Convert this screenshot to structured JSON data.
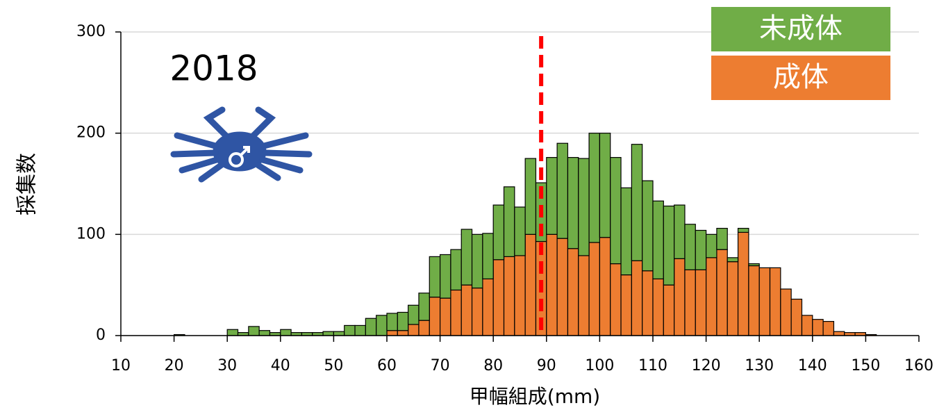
{
  "chart_data": {
    "type": "histogram",
    "stacked": true,
    "annotation": "2018",
    "xlabel": "甲幅組成(mm)",
    "ylabel": "採集数",
    "bins": [
      20,
      22,
      24,
      26,
      28,
      30,
      32,
      34,
      36,
      38,
      40,
      42,
      44,
      46,
      48,
      50,
      52,
      54,
      56,
      58,
      60,
      62,
      64,
      66,
      68,
      70,
      72,
      74,
      76,
      78,
      80,
      82,
      84,
      86,
      88,
      90,
      92,
      94,
      96,
      98,
      100,
      102,
      104,
      106,
      108,
      110,
      112,
      114,
      116,
      118,
      120,
      122,
      124,
      126,
      128,
      130,
      132,
      134,
      136,
      138,
      140,
      142,
      144,
      146,
      148,
      150,
      152
    ],
    "series": [
      {
        "name": "成体",
        "color": "#ed7d31",
        "values": [
          0,
          0,
          0,
          0,
          0,
          0,
          0,
          0,
          0,
          0,
          0,
          0,
          0,
          0,
          0,
          0,
          0,
          0,
          0,
          0,
          5,
          5,
          11,
          15,
          38,
          37,
          45,
          50,
          47,
          56,
          75,
          78,
          79,
          100,
          93,
          100,
          96,
          86,
          79,
          92,
          97,
          71,
          60,
          74,
          64,
          56,
          50,
          76,
          65,
          65,
          77,
          85,
          73,
          102,
          69,
          67,
          67,
          46,
          36,
          20,
          16,
          14,
          4,
          3,
          3,
          1
        ]
      },
      {
        "name": "未成体",
        "color": "#70ad47",
        "values": [
          1,
          0,
          0,
          0,
          0,
          6,
          3,
          9,
          5,
          3,
          6,
          3,
          3,
          3,
          4,
          4,
          10,
          10,
          17,
          20,
          17,
          18,
          19,
          27,
          40,
          43,
          40,
          55,
          53,
          45,
          54,
          69,
          48,
          75,
          58,
          76,
          94,
          90,
          96,
          108,
          103,
          105,
          86,
          115,
          89,
          77,
          78,
          53,
          45,
          39,
          23,
          21,
          4,
          4,
          2,
          0,
          0,
          0,
          0,
          0,
          0,
          0,
          0,
          0,
          0,
          0
        ]
      }
    ],
    "reference_line": {
      "x": 89,
      "color": "#ff0000"
    },
    "xlim": [
      10,
      160
    ],
    "xticks": [
      10,
      20,
      30,
      40,
      50,
      60,
      70,
      80,
      90,
      100,
      110,
      120,
      130,
      140,
      150,
      160
    ],
    "ylim": [
      0,
      300
    ],
    "yticks": [
      0,
      100,
      200,
      300
    ],
    "grid": true
  }
}
